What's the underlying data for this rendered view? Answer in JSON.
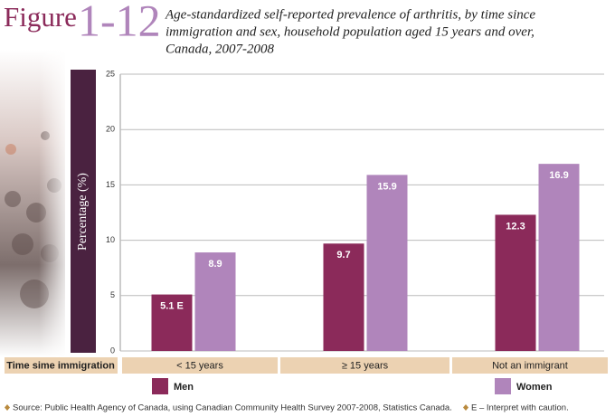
{
  "figure_label": "Figure",
  "figure_number": "1-12",
  "chart_data": {
    "type": "bar",
    "title": [
      "Age-standardized self-reported prevalence of arthritis, by time since",
      "immigration and sex, household population aged 15 years and over,",
      "Canada, 2007-2008"
    ],
    "y_label": "Percentage (%)",
    "x_label": "Time sime immigration",
    "categories": [
      "< 15 years",
      "≥ 15 years",
      "Not an immigrant"
    ],
    "series": [
      {
        "name": "Men",
        "color": "#8b2a5a",
        "values": [
          5.1,
          9.7,
          12.3
        ],
        "value_labels": [
          "5.1 E",
          "9.7",
          "12.3"
        ]
      },
      {
        "name": "Women",
        "color": "#b085bb",
        "values": [
          8.9,
          15.9,
          16.9
        ]
      }
    ],
    "ylim": [
      0,
      25
    ],
    "yticks": [
      0,
      5,
      10,
      15,
      20,
      25
    ],
    "grid": true
  },
  "footnotes": [
    "Source: Public Health Agency of Canada, using Canadian Community Health Survey 2007-2008, Statistics Canada.",
    "E – Interpret with caution."
  ]
}
